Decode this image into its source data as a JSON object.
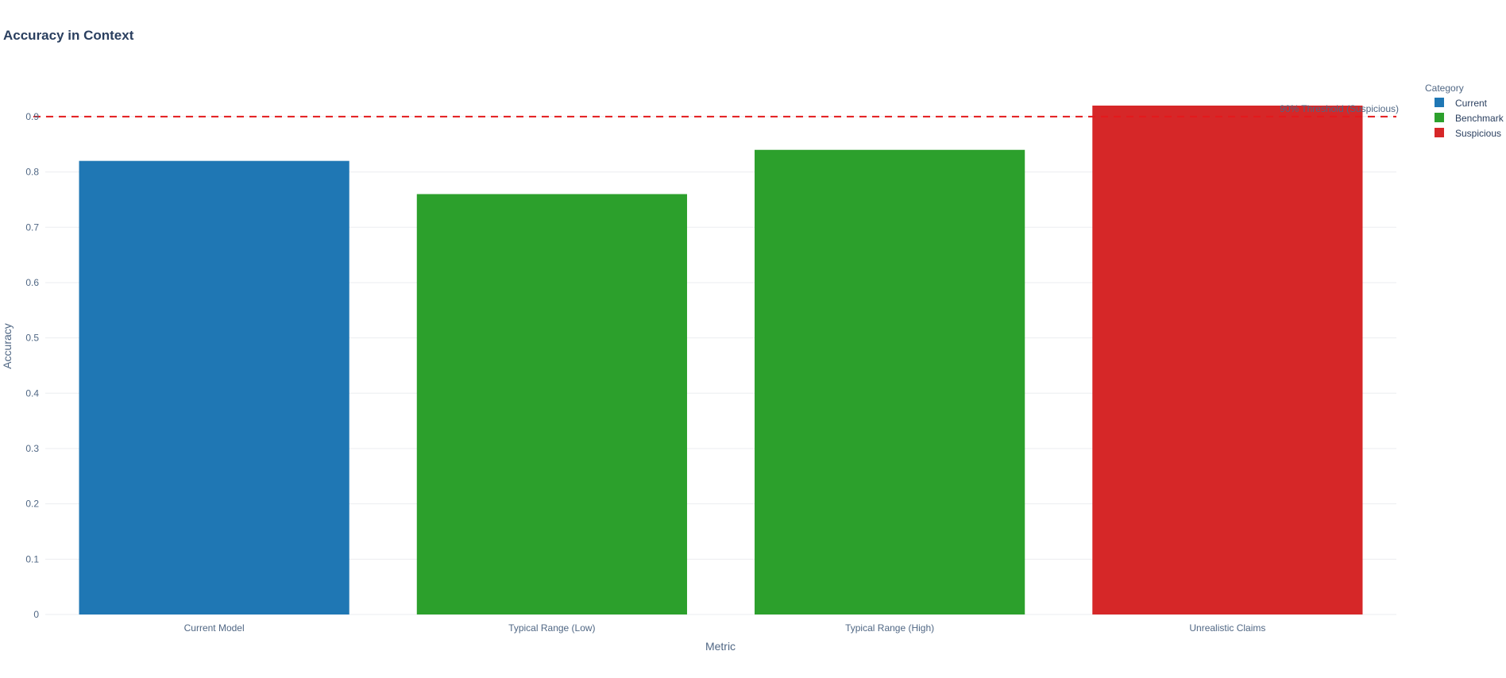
{
  "chart_data": {
    "type": "bar",
    "title": "Accuracy in Context",
    "xlabel": "Metric",
    "ylabel": "Accuracy",
    "categories": [
      "Current Model",
      "Typical Range (Low)",
      "Typical Range (High)",
      "Unrealistic Claims"
    ],
    "values": [
      0.82,
      0.76,
      0.84,
      0.92
    ],
    "bar_category": [
      "Current",
      "Benchmark",
      "Benchmark",
      "Suspicious"
    ],
    "ylim": [
      0,
      0.92
    ],
    "yticks": [
      0,
      0.1,
      0.2,
      0.3,
      0.4,
      0.5,
      0.6,
      0.7,
      0.8,
      0.9
    ],
    "grid": true,
    "legend": {
      "title": "Category",
      "placement": "top-right",
      "entries": [
        {
          "name": "Current",
          "color": "#1f77b4"
        },
        {
          "name": "Benchmark",
          "color": "#2ca02c"
        },
        {
          "name": "Suspicious",
          "color": "#d62728"
        }
      ]
    },
    "threshold": {
      "value": 0.9,
      "label": "90% Threshold (Suspicious)",
      "color": "#e31a1c",
      "style": "dashed"
    }
  }
}
